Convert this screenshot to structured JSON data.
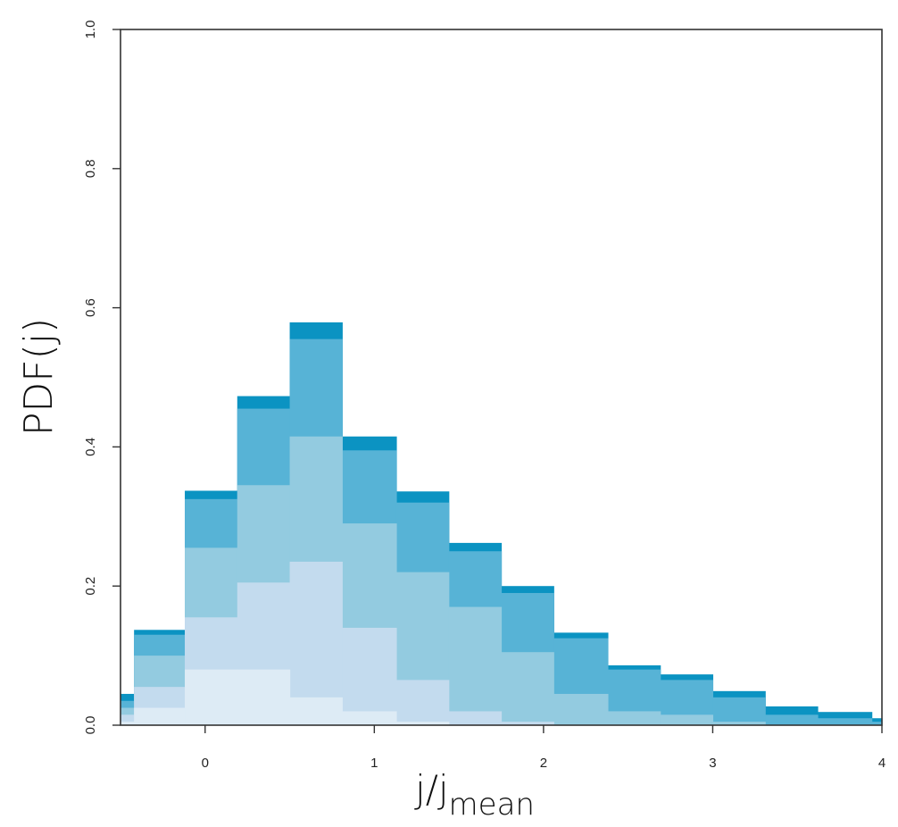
{
  "chart_data": {
    "type": "bar",
    "xlabel": "j/j",
    "xlabel_sub": "mean",
    "ylabel": "PDF(j)",
    "xlim": [
      -0.5,
      4
    ],
    "ylim": [
      0,
      1
    ],
    "xticks": [
      "0",
      "1",
      "2",
      "3",
      "4"
    ],
    "yticks": [
      "0.0",
      "0.2",
      "0.4",
      "0.6",
      "0.8",
      "1.0"
    ],
    "grid": false,
    "bin_edges": [
      -0.5,
      -0.42,
      -0.12,
      0.19,
      0.5,
      0.81,
      1.13,
      1.44,
      1.75,
      2.06,
      2.38,
      2.69,
      3.0,
      3.31,
      3.62,
      3.94,
      4.0
    ],
    "series": [
      {
        "color": "#ddebf5",
        "values": [
          0.005,
          0.025,
          0.08,
          0.08,
          0.04,
          0.02,
          0.005,
          0.0,
          0.0,
          0.0,
          0.0,
          0.0,
          0.0,
          0.0,
          0.0,
          0.0
        ]
      },
      {
        "color": "#c3dbee",
        "values": [
          0.015,
          0.055,
          0.155,
          0.205,
          0.235,
          0.14,
          0.065,
          0.02,
          0.005,
          0.0,
          0.0,
          0.0,
          0.0,
          0.0,
          0.0,
          0.0
        ]
      },
      {
        "color": "#93cbe0",
        "values": [
          0.025,
          0.1,
          0.255,
          0.345,
          0.415,
          0.29,
          0.22,
          0.17,
          0.105,
          0.045,
          0.02,
          0.015,
          0.005,
          0.0,
          0.0,
          0.0
        ]
      },
      {
        "color": "#57b3d6",
        "values": [
          0.035,
          0.13,
          0.325,
          0.455,
          0.555,
          0.395,
          0.32,
          0.25,
          0.19,
          0.125,
          0.08,
          0.065,
          0.04,
          0.015,
          0.01,
          0.005
        ]
      },
      {
        "color": "#0b93c2",
        "values": [
          0.045,
          0.137,
          0.337,
          0.473,
          0.579,
          0.415,
          0.336,
          0.262,
          0.2,
          0.133,
          0.086,
          0.073,
          0.049,
          0.027,
          0.019,
          0.01
        ]
      }
    ]
  }
}
